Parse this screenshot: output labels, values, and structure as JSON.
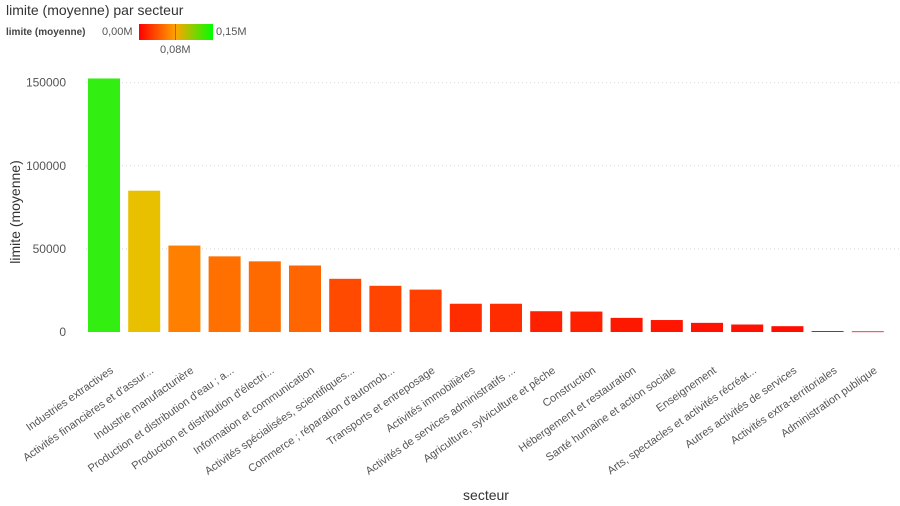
{
  "chart_data": {
    "type": "bar",
    "title": "limite (moyenne) par secteur",
    "xlabel": "secteur",
    "ylabel": "limite (moyenne)",
    "ylim": [
      0,
      160000
    ],
    "yticks": [
      0,
      50000,
      100000,
      150000
    ],
    "ytick_labels": [
      "0",
      "50000",
      "100000",
      "150000"
    ],
    "grid": "horizontal dotted",
    "legend": {
      "title": "limite (moyenne)",
      "min_label": "0,00M",
      "mid_label": "0,08M",
      "max_label": "0,15M",
      "min_color": "#ff0000",
      "mid_color": "#ffa500",
      "max_color": "#00ff00",
      "placement": "top-left"
    },
    "categories": [
      "Industries extractives",
      "Activités financières et d'assur...",
      "Industrie manufacturière",
      "Production et distribution d'eau ; a...",
      "Production et distribution d'électri...",
      "Information et communication",
      "Activités spécialisées, scientifiques...",
      "Commerce ; réparation d'automob...",
      "Transports et entreposage",
      "Activités immobilières",
      "Activités de services administratifs ...",
      "Agriculture, sylviculture et pêche",
      "Construction",
      "Hébergement et restauration",
      "Santé humaine et action sociale",
      "Enseignement",
      "Arts, spectacles et activités récréat...",
      "Autres activités de services",
      "Activités extra-territoriales",
      "Administration publique"
    ],
    "values": [
      152500,
      85000,
      52000,
      45500,
      42500,
      40000,
      32000,
      27800,
      25500,
      17000,
      17000,
      12500,
      12300,
      8500,
      7200,
      5500,
      4500,
      3500,
      600,
      400
    ],
    "colors": [
      "#33ee11",
      "#e8c000",
      "#ff8000",
      "#ff7000",
      "#ff6a00",
      "#ff6500",
      "#ff4a00",
      "#ff4500",
      "#ff4000",
      "#ff2c00",
      "#ff2c00",
      "#ff2000",
      "#ff2000",
      "#ff1800",
      "#ff1500",
      "#ff1200",
      "#ff1000",
      "#ff0e00",
      "#ff0500",
      "#ff0400"
    ]
  }
}
